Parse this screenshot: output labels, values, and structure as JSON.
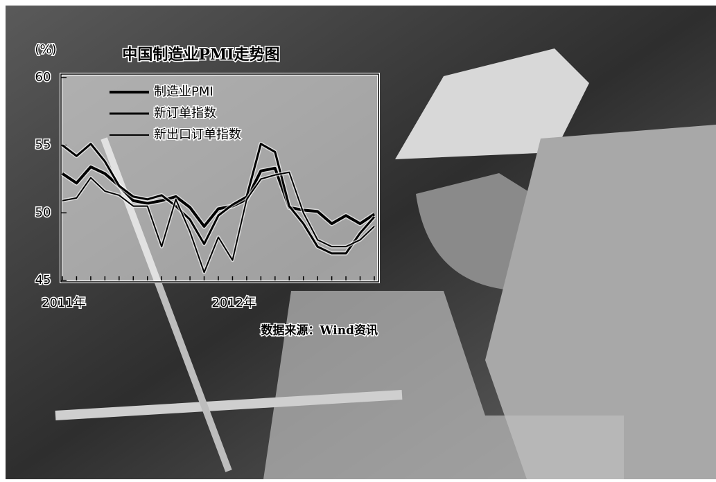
{
  "chart_data": {
    "type": "line",
    "title": "中国制造业PMI走势图",
    "unit_label": "(%)",
    "source": "数据来源：Wind资讯",
    "categories": [
      "2011年",
      null,
      null,
      null,
      null,
      null,
      null,
      null,
      null,
      null,
      null,
      null,
      "2012年",
      null,
      null,
      null,
      null,
      null,
      null,
      null,
      null,
      null,
      null
    ],
    "series": [
      {
        "name": "制造业PMI",
        "color": "#000000",
        "width": 4,
        "values": [
          52.9,
          52.2,
          53.4,
          52.9,
          52.0,
          50.9,
          50.7,
          50.9,
          51.2,
          50.4,
          49.0,
          50.3,
          50.5,
          51.0,
          53.1,
          53.3,
          50.4,
          50.2,
          50.1,
          49.2,
          49.8,
          49.2,
          49.9
        ]
      },
      {
        "name": "新订单指数",
        "color": "#000000",
        "width": 3,
        "values": [
          55.0,
          54.2,
          55.1,
          53.8,
          52.0,
          51.2,
          51.0,
          51.3,
          50.5,
          49.5,
          47.7,
          49.8,
          50.6,
          51.2,
          55.1,
          54.5,
          50.5,
          49.2,
          47.5,
          47.0,
          47.0,
          48.5,
          49.7
        ]
      },
      {
        "name": "新出口订单指数",
        "color": "#000000",
        "width": 2,
        "values": [
          50.9,
          51.1,
          52.6,
          51.6,
          51.3,
          50.5,
          50.5,
          47.5,
          51.0,
          48.6,
          45.6,
          48.2,
          46.5,
          51.0,
          52.5,
          52.8,
          53.0,
          50.0,
          48.0,
          47.5,
          47.5,
          48.0,
          49.0
        ]
      }
    ],
    "ylim": [
      45,
      60
    ],
    "yticks": [
      45,
      50,
      55,
      60
    ]
  }
}
